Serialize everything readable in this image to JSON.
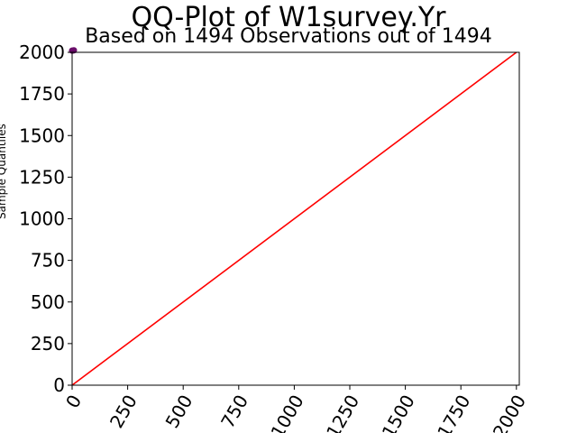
{
  "chart_data": {
    "type": "scatter",
    "title": "QQ-Plot of W1survey.Yr",
    "subtitle": "Based on 1494 Observations out of 1494",
    "xlabel": "",
    "ylabel": "Sample Quantiles",
    "xlim": [
      0,
      2013
    ],
    "ylim": [
      0,
      2000
    ],
    "x_ticks": [
      0,
      250,
      500,
      750,
      1000,
      1250,
      1500,
      1750,
      2000
    ],
    "x_tick_labels": [
      "0",
      "250",
      "500",
      "750",
      "1000",
      "1250",
      "1500",
      "1750",
      "2000"
    ],
    "y_ticks": [
      0,
      250,
      500,
      750,
      1000,
      1250,
      1500,
      1750,
      2000
    ],
    "y_tick_labels": [
      "0",
      "250",
      "500",
      "750",
      "1000",
      "1250",
      "1500",
      "1750",
      "2000"
    ],
    "grid": false,
    "series": [
      {
        "kind": "points",
        "points": [
          [
            0,
            2010
          ],
          [
            4,
            2011
          ],
          [
            8,
            2012
          ]
        ],
        "color": "#6a0d6a"
      },
      {
        "kind": "reference-line",
        "points": [
          [
            0,
            0
          ],
          [
            2013,
            2013
          ]
        ],
        "color": "#ff0000"
      }
    ]
  }
}
